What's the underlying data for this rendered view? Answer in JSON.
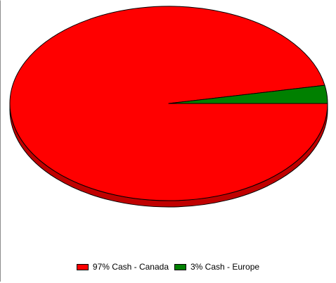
{
  "chart_data": {
    "type": "pie",
    "style": "3d",
    "slices": [
      {
        "label": "97% Cash - Canada",
        "value": 97,
        "color": "#ff0000",
        "side_color": "#c00000"
      },
      {
        "label": "3% Cash - Europe",
        "value": 3,
        "color": "#008000",
        "side_color": "#005000"
      }
    ],
    "legend_position": "bottom"
  }
}
